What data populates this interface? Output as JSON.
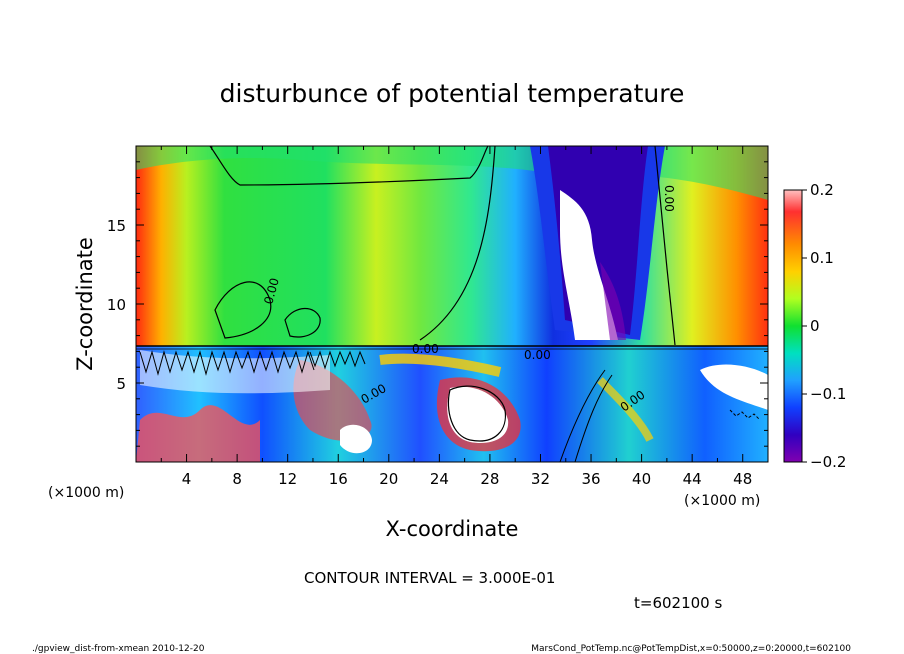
{
  "chart_data": {
    "type": "heatmap",
    "title": "disturbunce of potential temperature",
    "xlabel": "X-coordinate",
    "ylabel": "Z-coordinate",
    "x_unit_label": "(×1000 m)",
    "y_unit_label": "(×1000 m)",
    "xlim": [
      0,
      50
    ],
    "ylim": [
      0,
      20
    ],
    "x_ticks": [
      "4",
      "8",
      "12",
      "16",
      "20",
      "24",
      "28",
      "32",
      "36",
      "40",
      "44",
      "48"
    ],
    "y_ticks": [
      "5",
      "10",
      "15"
    ],
    "colorbar": {
      "min": -0.2,
      "max": 0.2,
      "ticks": [
        "0.2",
        "0.1",
        "0",
        "−0.1",
        "−0.2"
      ],
      "tick_values": [
        0.2,
        0.1,
        0,
        -0.1,
        -0.2
      ]
    },
    "contour_labels": [
      "0.00",
      "0.00",
      "0.00",
      "0.00",
      "0.00",
      "0.00"
    ],
    "contour_interval_text": "CONTOUR INTERVAL = 3.000E-01",
    "time_text": "t=602100 s"
  },
  "footer": {
    "left": "./gpview_dist-from-xmean  2010-12-20",
    "right": "MarsCond_PotTemp.nc@PotTempDist,x=0:50000,z=0:20000,t=602100"
  }
}
